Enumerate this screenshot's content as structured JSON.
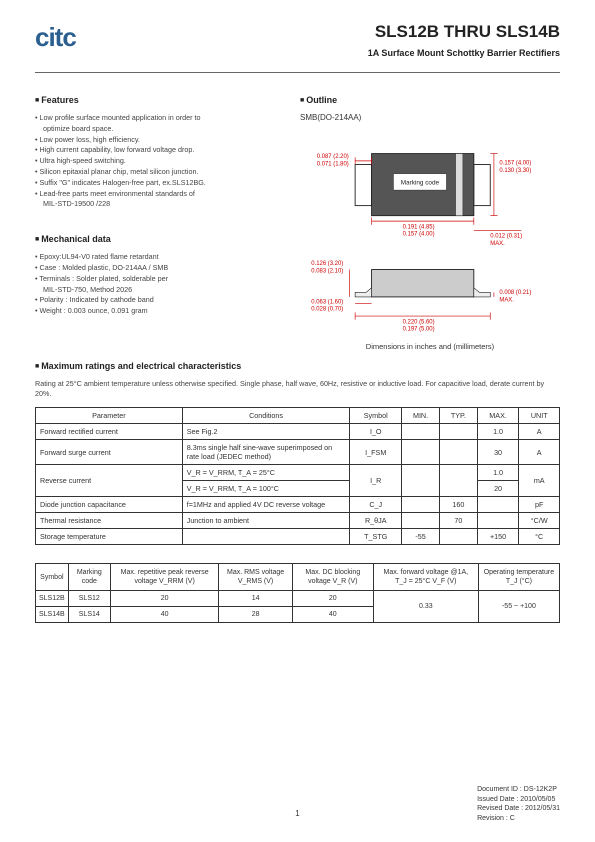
{
  "header": {
    "logo_text": "citc",
    "title": "SLS12B THRU SLS14B",
    "subtitle": "1A Surface Mount Schottky Barrier Rectifiers"
  },
  "features": {
    "heading": "Features",
    "items": [
      "Low profile surface mounted application in order to",
      "optimize board space.",
      "Low power loss, high efficiency.",
      "High current capability, low forward voltage drop.",
      "Ultra high-speed switching.",
      "Silicon epitaxial planar chip, metal silicon junction.",
      "Suffix \"G\" indicates Halogen-free part, ex.SLS12BG.",
      "Lead-free parts meet environmental standards of",
      "MIL-STD-19500 /228"
    ],
    "indent_flags": [
      false,
      true,
      false,
      false,
      false,
      false,
      false,
      false,
      true
    ]
  },
  "outline": {
    "heading": "Outline",
    "package": "SMB(DO-214AA)",
    "caption": "Dimensions in inches and (millimeters)",
    "dims": {
      "top_a": "0.087 (2.20)",
      "top_b": "0.071 (1.80)",
      "top_r1": "0.157 (4.00)",
      "top_r2": "0.130 (3.30)",
      "body_w1": "0.191 (4.85)",
      "body_w2": "0.157 (4.00)",
      "side_r": "0.012 (0.31)",
      "side_r2": "MAX.",
      "bot_a": "0.126 (3.20)",
      "bot_b": "0.083 (2.10)",
      "bot_l1": "0.063 (1.60)",
      "bot_l2": "0.028 (0.70)",
      "bot_t1": "0.008 (0.21)",
      "bot_t2": "MAX.",
      "bot_w1": "0.220 (5.60)",
      "bot_w2": "0.197 (5.00)",
      "marking": "Marking code"
    },
    "colors": {
      "red": "#cc0000",
      "black": "#222"
    }
  },
  "mechanical": {
    "heading": "Mechanical data",
    "items": [
      "Epoxy:UL94-V0 rated flame retardant",
      "Case : Molded plastic,  DO-214AA / SMB",
      "Terminals : Solder plated, solderable per",
      "MIL-STD-750, Method 2026",
      "Polarity : Indicated by cathode band",
      "Weight : 0.003 ounce,  0.091 gram"
    ],
    "indent_flags": [
      false,
      false,
      false,
      true,
      false,
      false
    ]
  },
  "ratings": {
    "heading": "Maximum ratings and electrical characteristics",
    "note": "Rating at 25°C ambient  temperature  unless  otherwise  specified. Single phase, half wave, 60Hz, resistive or inductive load. For capacitive load, derate current by 20%.",
    "headers": [
      "Parameter",
      "Conditions",
      "Symbol",
      "MIN.",
      "TYP.",
      "MAX.",
      "UNIT"
    ],
    "rows": [
      {
        "param": "Forward rectified current",
        "cond": "See Fig.2",
        "sym": "I_O",
        "min": "",
        "typ": "",
        "max": "1.0",
        "unit": "A"
      },
      {
        "param": "Forward surge current",
        "cond": "8.3ms single half sine-wave superimposed on rate load (JEDEC method)",
        "sym": "I_FSM",
        "min": "",
        "typ": "",
        "max": "30",
        "unit": "A"
      },
      {
        "param": "Reverse current",
        "cond": "V_R  =  V_RRM, T_A  =  25°C",
        "sym": "",
        "min": "",
        "typ": "",
        "max": "1.0",
        "unit": ""
      },
      {
        "param": "",
        "cond": "V_R  =  V_RRM, T_A  =  100°C",
        "sym": "I_R",
        "min": "",
        "typ": "",
        "max": "20",
        "unit": "mA"
      },
      {
        "param": "Diode junction capacitance",
        "cond": "f=1MHz and applied 4V DC reverse voltage",
        "sym": "C_J",
        "min": "",
        "typ": "160",
        "max": "",
        "unit": "pF"
      },
      {
        "param": "Thermal resistance",
        "cond": "Junction to ambient",
        "sym": "R_θJA",
        "min": "",
        "typ": "70",
        "max": "",
        "unit": "°C/W"
      },
      {
        "param": "Storage temperature",
        "cond": "",
        "sym": "T_STG",
        "min": "-55",
        "typ": "",
        "max": "+150",
        "unit": "°C"
      }
    ]
  },
  "parts": {
    "headers": [
      "Symbol",
      "Marking code",
      "Max. repetitive peak reverse voltage V_RRM (V)",
      "Max. RMS voltage V_RMS (V)",
      "Max. DC blocking voltage V_R (V)",
      "Max. forward voltage @1A, T_J = 25°C V_F (V)",
      "Operating temperature T_J (°C)"
    ],
    "rows": [
      [
        "SLS12B",
        "SLS12",
        "20",
        "14",
        "20"
      ],
      [
        "SLS14B",
        "SLS14",
        "40",
        "28",
        "40"
      ]
    ],
    "shared": {
      "vf": "0.33",
      "tj": "-55 ~ +100"
    }
  },
  "footer": {
    "doc_id": "Document ID : DS-12K2P",
    "issued": "Issued Date : 2010/05/05",
    "revised": "Revised Date : 2012/05/31",
    "revision": "Revision : C"
  },
  "page_number": "1"
}
